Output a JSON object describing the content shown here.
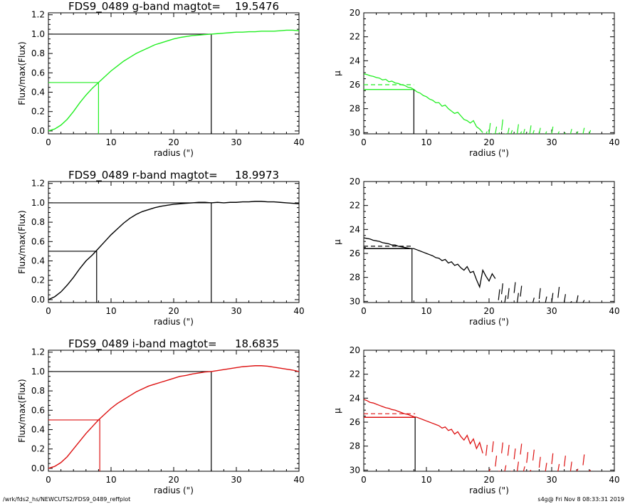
{
  "footer": {
    "left": "/wrk/fds2_hs/NEWCUTS2/FDS9_0489_reffplot",
    "right": "s4g@  Fri Nov  8 08:33:31 2019"
  },
  "colors": {
    "g": "#22ee22",
    "r": "#000000",
    "i": "#dd1111",
    "axis": "#000000"
  },
  "chart_data": [
    {
      "id": "g-growth",
      "band": "g",
      "type": "line",
      "title": "FDS9_0489 g-band  magtot=",
      "title_value": "19.5476",
      "xlabel": "radius (\")",
      "ylabel": "Flux/max(Flux)",
      "xlim": [
        0,
        40
      ],
      "ylim": [
        -0.03,
        1.22
      ],
      "xticks": [
        "0",
        "10",
        "20",
        "30",
        "40"
      ],
      "yticks": [
        "0.0",
        "0.2",
        "0.4",
        "0.6",
        "0.8",
        "1.0",
        "1.2"
      ],
      "x": [
        0,
        1,
        2,
        3,
        4,
        5,
        6,
        7,
        8,
        9,
        10,
        11,
        12,
        13,
        14,
        15,
        16,
        17,
        18,
        19,
        20,
        21,
        22,
        23,
        24,
        25,
        26,
        27,
        28,
        29,
        30,
        31,
        32,
        33,
        34,
        35,
        36,
        37,
        38,
        39,
        40
      ],
      "y": [
        0,
        0.02,
        0.06,
        0.12,
        0.2,
        0.29,
        0.37,
        0.44,
        0.5,
        0.56,
        0.62,
        0.67,
        0.72,
        0.76,
        0.8,
        0.83,
        0.86,
        0.89,
        0.91,
        0.93,
        0.95,
        0.965,
        0.975,
        0.985,
        0.99,
        0.995,
        1.0,
        1.005,
        1.01,
        1.015,
        1.02,
        1.02,
        1.025,
        1.025,
        1.03,
        1.03,
        1.03,
        1.035,
        1.04,
        1.04,
        1.035
      ],
      "half_light_radius": 8.0,
      "half_value": 0.5,
      "total_radius": 26.0,
      "total_value": 1.0
    },
    {
      "id": "g-sb",
      "band": "g",
      "type": "line",
      "xlabel": "radius (\")",
      "ylabel": "μ",
      "xlim": [
        0,
        40
      ],
      "ylim": [
        30.1,
        20
      ],
      "y_inverted": true,
      "xticks": [
        "0",
        "10",
        "20",
        "30",
        "40"
      ],
      "yticks": [
        "20",
        "22",
        "24",
        "26",
        "28",
        "30"
      ],
      "x": [
        0,
        0.5,
        1,
        1.5,
        2,
        2.5,
        3,
        3.5,
        4,
        4.5,
        5,
        5.5,
        6,
        6.5,
        7,
        7.5,
        8,
        8.5,
        9,
        9.5,
        10,
        10.5,
        11,
        11.5,
        12,
        12.5,
        13,
        13.5,
        14,
        14.5,
        15,
        15.5,
        16,
        16.5,
        17,
        17.5,
        18,
        18.5,
        19
      ],
      "y": [
        25.1,
        25.15,
        25.25,
        25.3,
        25.4,
        25.45,
        25.6,
        25.55,
        25.75,
        25.7,
        25.85,
        25.9,
        26.0,
        26.05,
        26.2,
        26.25,
        26.4,
        26.6,
        26.7,
        26.9,
        27.0,
        27.2,
        27.3,
        27.5,
        27.5,
        27.8,
        27.7,
        28.0,
        28.2,
        28.4,
        28.3,
        28.6,
        28.9,
        29.0,
        29.2,
        29.0,
        29.5,
        29.7,
        30.0
      ],
      "noise_x": [
        19.5,
        20,
        20.5,
        21,
        21.5,
        22,
        22.5,
        23,
        23.5,
        24,
        24.5,
        25,
        25.5,
        26,
        26.5,
        27,
        28,
        29,
        30,
        31,
        32,
        33,
        34,
        35,
        36
      ],
      "noise_y": [
        29.9,
        29.2,
        30.1,
        29.5,
        30.0,
        28.9,
        30.1,
        29.6,
        29.8,
        30.1,
        29.3,
        29.9,
        29.7,
        30.1,
        29.4,
        29.8,
        29.6,
        29.9,
        29.5,
        29.9,
        30.0,
        29.7,
        29.9,
        29.6,
        29.8
      ],
      "mu_half": 26.4,
      "mu_mean_half": 26.0,
      "half_light_radius": 8.0
    },
    {
      "id": "r-growth",
      "band": "r",
      "type": "line",
      "title": "FDS9_0489 r-band  magtot=",
      "title_value": "18.9973",
      "xlabel": "radius (\")",
      "ylabel": "Flux/max(Flux)",
      "xlim": [
        0,
        40
      ],
      "ylim": [
        -0.03,
        1.22
      ],
      "xticks": [
        "0",
        "10",
        "20",
        "30",
        "40"
      ],
      "yticks": [
        "0.0",
        "0.2",
        "0.4",
        "0.6",
        "0.8",
        "1.0",
        "1.2"
      ],
      "x": [
        0,
        1,
        2,
        3,
        4,
        5,
        6,
        7,
        8,
        9,
        10,
        11,
        12,
        13,
        14,
        15,
        16,
        17,
        18,
        19,
        20,
        21,
        22,
        23,
        24,
        25,
        26,
        27,
        28,
        29,
        30,
        31,
        32,
        33,
        34,
        35,
        36,
        37,
        38,
        39,
        40
      ],
      "y": [
        0,
        0.03,
        0.08,
        0.15,
        0.23,
        0.32,
        0.4,
        0.46,
        0.53,
        0.6,
        0.67,
        0.73,
        0.79,
        0.84,
        0.88,
        0.91,
        0.93,
        0.95,
        0.965,
        0.975,
        0.985,
        0.99,
        0.995,
        1.0,
        1.005,
        1.005,
        1.0,
        1.005,
        1.0,
        1.005,
        1.005,
        1.01,
        1.01,
        1.015,
        1.015,
        1.01,
        1.01,
        1.005,
        1.0,
        0.995,
        0.99
      ],
      "half_light_radius": 7.7,
      "half_value": 0.5,
      "total_radius": 26.0,
      "total_value": 1.0
    },
    {
      "id": "r-sb",
      "band": "r",
      "type": "line",
      "xlabel": "radius (\")",
      "ylabel": "μ",
      "xlim": [
        0,
        40
      ],
      "ylim": [
        30.1,
        20
      ],
      "y_inverted": true,
      "xticks": [
        "0",
        "10",
        "20",
        "30",
        "40"
      ],
      "yticks": [
        "20",
        "22",
        "24",
        "26",
        "28",
        "30"
      ],
      "x": [
        0,
        0.5,
        1,
        1.5,
        2,
        2.5,
        3,
        3.5,
        4,
        4.5,
        5,
        5.5,
        6,
        6.5,
        7,
        7.5,
        8,
        8.5,
        9,
        9.5,
        10,
        10.5,
        11,
        11.5,
        12,
        12.5,
        13,
        13.5,
        14,
        14.5,
        15,
        15.5,
        16,
        16.5,
        17,
        17.5,
        18,
        18.5,
        19,
        19.5,
        20,
        20.5,
        21
      ],
      "y": [
        24.7,
        24.75,
        24.8,
        24.9,
        24.95,
        25.0,
        25.1,
        25.15,
        25.2,
        25.3,
        25.3,
        25.4,
        25.45,
        25.5,
        25.55,
        25.6,
        25.6,
        25.7,
        25.8,
        25.9,
        26.0,
        26.1,
        26.2,
        26.35,
        26.4,
        26.6,
        26.5,
        26.8,
        26.7,
        27.0,
        26.9,
        27.2,
        27.4,
        27.1,
        27.6,
        27.5,
        28.2,
        28.8,
        27.4,
        27.9,
        28.3,
        27.7,
        28.1
      ],
      "noise_x": [
        21.5,
        22,
        22.5,
        23,
        23.5,
        24,
        24.5,
        25,
        27,
        28,
        29,
        30,
        31,
        32,
        33,
        34,
        35
      ],
      "noise_y": [
        29.0,
        28.5,
        29.5,
        28.9,
        30.1,
        28.4,
        29.3,
        28.7,
        29.7,
        28.9,
        29.6,
        29.3,
        28.8,
        29.4,
        30.0,
        29.5,
        29.9
      ],
      "mu_half": 25.6,
      "mu_mean_half": 25.4,
      "half_light_radius": 7.7
    },
    {
      "id": "i-growth",
      "band": "i",
      "type": "line",
      "title": "FDS9_0489 i-band  magtot=",
      "title_value": "18.6835",
      "xlabel": "radius (\")",
      "ylabel": "Flux/max(Flux)",
      "xlim": [
        0,
        40
      ],
      "ylim": [
        -0.03,
        1.22
      ],
      "xticks": [
        "0",
        "10",
        "20",
        "30",
        "40"
      ],
      "yticks": [
        "0.0",
        "0.2",
        "0.4",
        "0.6",
        "0.8",
        "1.0",
        "1.2"
      ],
      "x": [
        0,
        1,
        2,
        3,
        4,
        5,
        6,
        7,
        8,
        9,
        10,
        11,
        12,
        13,
        14,
        15,
        16,
        17,
        18,
        19,
        20,
        21,
        22,
        23,
        24,
        25,
        26,
        27,
        28,
        29,
        30,
        31,
        32,
        33,
        34,
        35,
        36,
        37,
        38,
        39,
        40
      ],
      "y": [
        0,
        0.02,
        0.06,
        0.12,
        0.2,
        0.28,
        0.36,
        0.43,
        0.5,
        0.56,
        0.62,
        0.67,
        0.71,
        0.75,
        0.79,
        0.82,
        0.85,
        0.87,
        0.89,
        0.91,
        0.93,
        0.95,
        0.96,
        0.975,
        0.985,
        0.995,
        1.0,
        1.01,
        1.02,
        1.03,
        1.04,
        1.05,
        1.055,
        1.06,
        1.06,
        1.055,
        1.045,
        1.035,
        1.025,
        1.015,
        1.0
      ],
      "half_light_radius": 8.2,
      "half_value": 0.5,
      "total_radius": 26.0,
      "total_value": 1.0
    },
    {
      "id": "i-sb",
      "band": "i",
      "type": "line",
      "xlabel": "radius (\")",
      "ylabel": "μ",
      "xlim": [
        0,
        40
      ],
      "ylim": [
        30.1,
        20
      ],
      "y_inverted": true,
      "xticks": [
        "0",
        "10",
        "20",
        "30",
        "40"
      ],
      "yticks": [
        "20",
        "22",
        "24",
        "26",
        "28",
        "30"
      ],
      "x": [
        0,
        0.5,
        1,
        1.5,
        2,
        2.5,
        3,
        3.5,
        4,
        4.5,
        5,
        5.5,
        6,
        6.5,
        7,
        7.5,
        8,
        8.5,
        9,
        9.5,
        10,
        10.5,
        11,
        11.5,
        12,
        12.5,
        13,
        13.5,
        14,
        14.5,
        15,
        15.5,
        16,
        16.5,
        17,
        17.5,
        18,
        18.5,
        19
      ],
      "y": [
        24.1,
        24.2,
        24.35,
        24.4,
        24.5,
        24.6,
        24.7,
        24.8,
        24.85,
        24.95,
        25.0,
        25.1,
        25.2,
        25.3,
        25.35,
        25.45,
        25.55,
        25.6,
        25.7,
        25.8,
        25.9,
        26.0,
        26.1,
        26.2,
        26.3,
        26.5,
        26.4,
        26.7,
        26.6,
        27.0,
        26.8,
        27.2,
        27.5,
        27.1,
        27.8,
        27.4,
        28.2,
        27.7,
        28.6
      ],
      "noise_x": [
        19.5,
        20,
        20.5,
        21,
        21.5,
        22,
        22.5,
        23,
        23.5,
        24,
        24.5,
        25,
        25.5,
        26,
        26.5,
        27,
        28,
        29,
        30,
        31,
        32,
        33,
        34,
        35,
        36
      ],
      "noise_y": [
        27.9,
        29.9,
        27.6,
        28.8,
        30.1,
        27.7,
        29.6,
        27.9,
        30.1,
        28.2,
        29.3,
        27.8,
        29.7,
        28.5,
        30.0,
        28.3,
        28.9,
        29.4,
        28.6,
        29.5,
        28.8,
        29.3,
        29.9,
        28.7,
        30.0
      ],
      "mu_half": 25.6,
      "mu_mean_half": 25.3,
      "half_light_radius": 8.2
    }
  ]
}
